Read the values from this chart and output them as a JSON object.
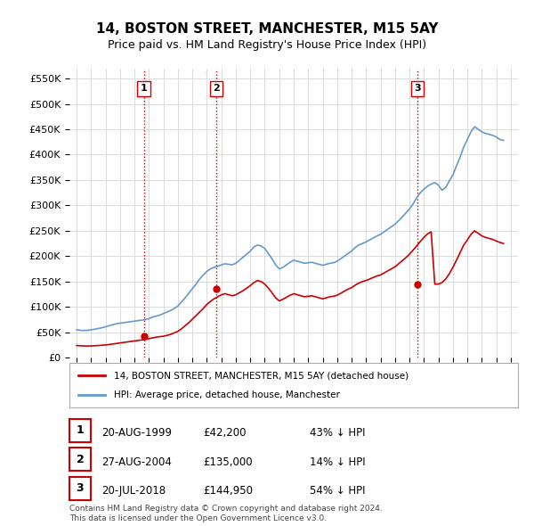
{
  "title": "14, BOSTON STREET, MANCHESTER, M15 5AY",
  "subtitle": "Price paid vs. HM Land Registry's House Price Index (HPI)",
  "ylabel_ticks": [
    "£0",
    "£50K",
    "£100K",
    "£150K",
    "£200K",
    "£250K",
    "£300K",
    "£350K",
    "£400K",
    "£450K",
    "£500K",
    "£550K"
  ],
  "ytick_values": [
    0,
    50000,
    100000,
    150000,
    200000,
    250000,
    300000,
    350000,
    400000,
    450000,
    500000,
    550000
  ],
  "ylim": [
    0,
    570000
  ],
  "xlim_start": 1994.5,
  "xlim_end": 2025.5,
  "sales": [
    {
      "label": "1",
      "date": "20-AUG-1999",
      "year": 1999.64,
      "price": 42200,
      "pct": "43%",
      "dir": "↓"
    },
    {
      "label": "2",
      "date": "27-AUG-2004",
      "year": 2004.65,
      "price": 135000,
      "pct": "14%",
      "dir": "↓"
    },
    {
      "label": "3",
      "date": "20-JUL-2018",
      "year": 2018.55,
      "price": 144950,
      "pct": "54%",
      "dir": "↓"
    }
  ],
  "red_line_color": "#cc0000",
  "blue_line_color": "#6699cc",
  "dashed_line_color": "#cc0000",
  "grid_color": "#dddddd",
  "background_color": "#ffffff",
  "legend_label_red": "14, BOSTON STREET, MANCHESTER, M15 5AY (detached house)",
  "legend_label_blue": "HPI: Average price, detached house, Manchester",
  "footer": "Contains HM Land Registry data © Crown copyright and database right 2024.\nThis data is licensed under the Open Government Licence v3.0.",
  "hpi_data": {
    "years": [
      1995.0,
      1995.25,
      1995.5,
      1995.75,
      1996.0,
      1996.25,
      1996.5,
      1996.75,
      1997.0,
      1997.25,
      1997.5,
      1997.75,
      1998.0,
      1998.25,
      1998.5,
      1998.75,
      1999.0,
      1999.25,
      1999.5,
      1999.75,
      2000.0,
      2000.25,
      2000.5,
      2000.75,
      2001.0,
      2001.25,
      2001.5,
      2001.75,
      2002.0,
      2002.25,
      2002.5,
      2002.75,
      2003.0,
      2003.25,
      2003.5,
      2003.75,
      2004.0,
      2004.25,
      2004.5,
      2004.75,
      2005.0,
      2005.25,
      2005.5,
      2005.75,
      2006.0,
      2006.25,
      2006.5,
      2006.75,
      2007.0,
      2007.25,
      2007.5,
      2007.75,
      2008.0,
      2008.25,
      2008.5,
      2008.75,
      2009.0,
      2009.25,
      2009.5,
      2009.75,
      2010.0,
      2010.25,
      2010.5,
      2010.75,
      2011.0,
      2011.25,
      2011.5,
      2011.75,
      2012.0,
      2012.25,
      2012.5,
      2012.75,
      2013.0,
      2013.25,
      2013.5,
      2013.75,
      2014.0,
      2014.25,
      2014.5,
      2014.75,
      2015.0,
      2015.25,
      2015.5,
      2015.75,
      2016.0,
      2016.25,
      2016.5,
      2016.75,
      2017.0,
      2017.25,
      2017.5,
      2017.75,
      2018.0,
      2018.25,
      2018.5,
      2018.75,
      2019.0,
      2019.25,
      2019.5,
      2019.75,
      2020.0,
      2020.25,
      2020.5,
      2020.75,
      2021.0,
      2021.25,
      2021.5,
      2021.75,
      2022.0,
      2022.25,
      2022.5,
      2022.75,
      2023.0,
      2023.25,
      2023.5,
      2023.75,
      2024.0,
      2024.25,
      2024.5
    ],
    "values": [
      55000,
      54000,
      53500,
      54000,
      55000,
      56000,
      57500,
      59000,
      61000,
      63000,
      65000,
      67000,
      68000,
      69000,
      70000,
      71000,
      72000,
      73000,
      74000,
      75000,
      77000,
      80000,
      82000,
      84000,
      87000,
      90000,
      93000,
      97000,
      102000,
      110000,
      118000,
      127000,
      136000,
      145000,
      155000,
      163000,
      170000,
      175000,
      178000,
      180000,
      183000,
      185000,
      184000,
      183000,
      186000,
      192000,
      198000,
      204000,
      210000,
      218000,
      222000,
      220000,
      215000,
      205000,
      195000,
      183000,
      175000,
      178000,
      183000,
      188000,
      192000,
      190000,
      188000,
      186000,
      187000,
      188000,
      186000,
      184000,
      182000,
      184000,
      186000,
      187000,
      190000,
      195000,
      200000,
      205000,
      210000,
      217000,
      222000,
      225000,
      228000,
      232000,
      236000,
      240000,
      243000,
      248000,
      253000,
      258000,
      263000,
      270000,
      277000,
      285000,
      293000,
      303000,
      315000,
      325000,
      332000,
      338000,
      342000,
      345000,
      340000,
      330000,
      335000,
      348000,
      360000,
      378000,
      395000,
      415000,
      430000,
      445000,
      455000,
      450000,
      445000,
      442000,
      440000,
      438000,
      435000,
      430000,
      428000
    ]
  },
  "red_line_data": {
    "years": [
      1995.0,
      1995.25,
      1995.5,
      1995.75,
      1996.0,
      1996.25,
      1996.5,
      1996.75,
      1997.0,
      1997.25,
      1997.5,
      1997.75,
      1998.0,
      1998.25,
      1998.5,
      1998.75,
      1999.0,
      1999.25,
      1999.5,
      1999.75,
      2000.0,
      2000.25,
      2000.5,
      2000.75,
      2001.0,
      2001.25,
      2001.5,
      2001.75,
      2002.0,
      2002.25,
      2002.5,
      2002.75,
      2003.0,
      2003.25,
      2003.5,
      2003.75,
      2004.0,
      2004.25,
      2004.5,
      2004.75,
      2005.0,
      2005.25,
      2005.5,
      2005.75,
      2006.0,
      2006.25,
      2006.5,
      2006.75,
      2007.0,
      2007.25,
      2007.5,
      2007.75,
      2008.0,
      2008.25,
      2008.5,
      2008.75,
      2009.0,
      2009.25,
      2009.5,
      2009.75,
      2010.0,
      2010.25,
      2010.5,
      2010.75,
      2011.0,
      2011.25,
      2011.5,
      2011.75,
      2012.0,
      2012.25,
      2012.5,
      2012.75,
      2013.0,
      2013.25,
      2013.5,
      2013.75,
      2014.0,
      2014.25,
      2014.5,
      2014.75,
      2015.0,
      2015.25,
      2015.5,
      2015.75,
      2016.0,
      2016.25,
      2016.5,
      2016.75,
      2017.0,
      2017.25,
      2017.5,
      2017.75,
      2018.0,
      2018.25,
      2018.5,
      2018.75,
      2019.0,
      2019.25,
      2019.5,
      2019.75,
      2020.0,
      2020.25,
      2020.5,
      2020.75,
      2021.0,
      2021.25,
      2021.5,
      2021.75,
      2022.0,
      2022.25,
      2022.5,
      2022.75,
      2023.0,
      2023.25,
      2023.5,
      2023.75,
      2024.0,
      2024.25,
      2024.5
    ],
    "values": [
      24000,
      23500,
      23200,
      23000,
      23200,
      23500,
      24000,
      24500,
      25000,
      26000,
      27000,
      28000,
      29000,
      30000,
      31000,
      32000,
      33000,
      34000,
      35000,
      36000,
      37500,
      39000,
      40500,
      41500,
      42200,
      44000,
      46000,
      49000,
      52000,
      57000,
      63000,
      69000,
      76000,
      83000,
      90000,
      97000,
      105000,
      111000,
      116000,
      120000,
      124000,
      126000,
      124000,
      122000,
      124000,
      128000,
      132000,
      137000,
      142000,
      148000,
      152000,
      150000,
      145000,
      137000,
      128000,
      118000,
      112000,
      115000,
      119000,
      123000,
      126000,
      124000,
      122000,
      120000,
      121000,
      122000,
      120000,
      118000,
      116000,
      118000,
      120000,
      121000,
      123000,
      127000,
      131000,
      135000,
      138000,
      143000,
      147000,
      150000,
      152000,
      155000,
      158000,
      161000,
      163000,
      167000,
      171000,
      175000,
      179000,
      185000,
      191000,
      197000,
      204000,
      212000,
      220000,
      229000,
      237000,
      244000,
      248000,
      144950,
      145000,
      148000,
      155000,
      165000,
      178000,
      192000,
      207000,
      222000,
      232000,
      243000,
      250000,
      245000,
      240000,
      237000,
      235000,
      233000,
      230000,
      227000,
      225000
    ]
  }
}
